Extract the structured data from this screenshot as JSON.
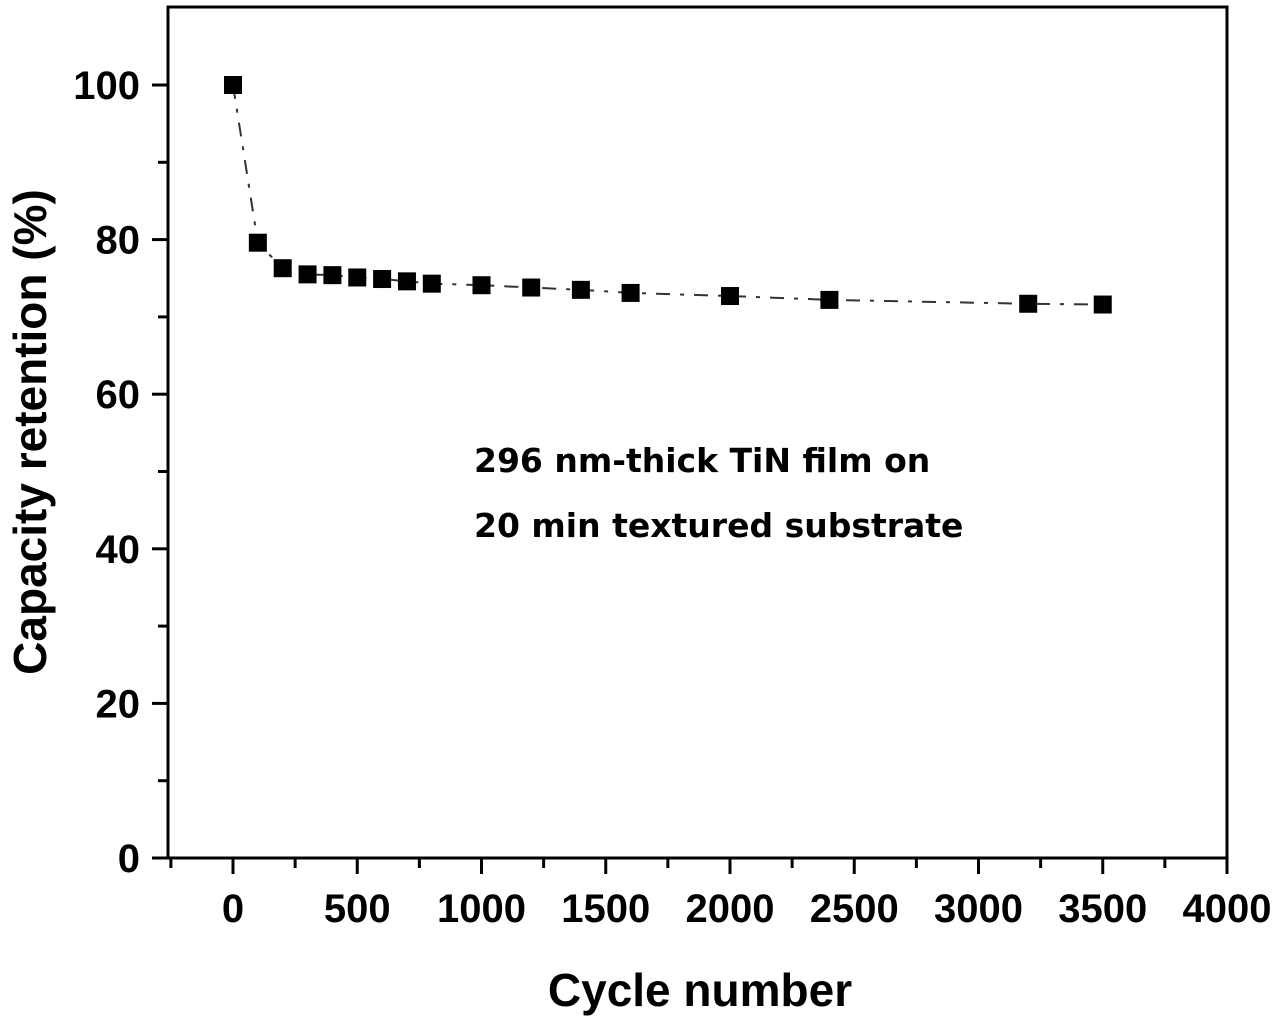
{
  "chart_data": {
    "type": "line",
    "title": "",
    "xlabel": "Cycle number",
    "ylabel": "Capacity retention (%)",
    "xlim": [
      -250,
      4000
    ],
    "ylim": [
      0,
      110
    ],
    "x_ticks": [
      0,
      500,
      1000,
      1500,
      2000,
      2500,
      3000,
      3500,
      4000
    ],
    "y_ticks": [
      0,
      20,
      40,
      60,
      80,
      100
    ],
    "grid": false,
    "legend": null,
    "marker": "square",
    "line_style": "dashed",
    "series": [
      {
        "name": "296 nm-thick TiN film on 20 min textured substrate",
        "x": [
          0,
          100,
          200,
          300,
          400,
          500,
          600,
          700,
          800,
          1000,
          1200,
          1400,
          1600,
          2000,
          2400,
          3200,
          3500
        ],
        "values": [
          100,
          79.6,
          76.3,
          75.5,
          75.4,
          75.1,
          74.9,
          74.6,
          74.3,
          74.1,
          73.8,
          73.5,
          73.1,
          72.7,
          72.2,
          71.7,
          71.6
        ]
      }
    ],
    "annotations": [
      "296 nm-thick TiN film on",
      "20 min textured substrate"
    ]
  },
  "labels": {
    "xlabel": "Cycle number",
    "ylabel": "Capacity retention (%)",
    "annot_line1": "296 nm-thick TiN film on",
    "annot_line2": "20 min textured substrate"
  },
  "colors": {
    "marker": "#000000",
    "line": "#333333",
    "axis": "#000000"
  }
}
